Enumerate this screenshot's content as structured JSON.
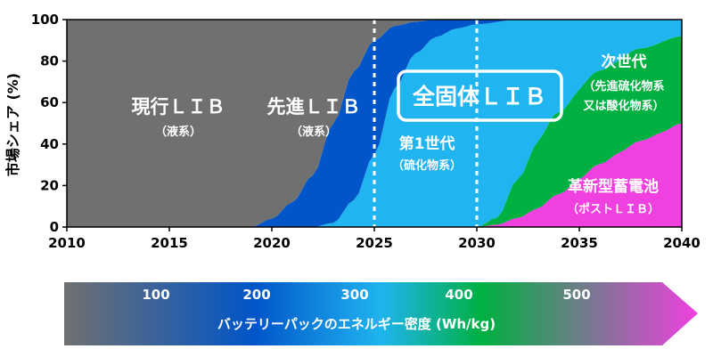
{
  "chart_data": {
    "type": "area",
    "ylabel": "市場シェア (%)",
    "xlim": [
      2010,
      2040
    ],
    "ylim": [
      0,
      100
    ],
    "xticks": [
      "2010",
      "2015",
      "2020",
      "2025",
      "2030",
      "2035",
      "2040"
    ],
    "yticks": [
      "0",
      "20",
      "40",
      "60",
      "80",
      "100"
    ],
    "series": [
      {
        "name": "現行ＬＩＢ",
        "sub": "（液系）",
        "color": "#707070",
        "x": [
          2010,
          2019,
          2020,
          2021,
          2022,
          2023,
          2024,
          2025,
          2026,
          2027,
          2028,
          2030,
          2040
        ],
        "values": [
          100,
          100,
          96,
          88,
          75,
          50,
          25,
          10,
          3,
          1,
          0,
          0,
          0
        ]
      },
      {
        "name": "先進ＬＩＢ",
        "sub": "（液系）",
        "color": "#0055c8",
        "x": [
          2010,
          2019,
          2020,
          2021,
          2022,
          2023,
          2024,
          2025,
          2026,
          2027,
          2028,
          2029,
          2030,
          2032,
          2040
        ],
        "values": [
          0,
          0,
          4,
          12,
          25,
          48,
          62,
          55,
          30,
          15,
          8,
          4,
          2,
          0,
          0
        ]
      },
      {
        "name": "第1世代",
        "sub": "（硫化物系）",
        "color": "#20b4f0",
        "x": [
          2010,
          2022,
          2023,
          2024,
          2025,
          2026,
          2027,
          2028,
          2029,
          2030,
          2031,
          2032,
          2034,
          2036,
          2038,
          2040
        ],
        "values": [
          0,
          0,
          2,
          13,
          35,
          67,
          82,
          87,
          88,
          87,
          82,
          70,
          45,
          25,
          14,
          8
        ]
      },
      {
        "name": "次世代",
        "sub1": "（先進硫化物系",
        "sub2": "又は酸化物系）",
        "color": "#00b040",
        "x": [
          2010,
          2029,
          2030,
          2031,
          2032,
          2033,
          2034,
          2035,
          2036,
          2037,
          2038,
          2039,
          2040
        ],
        "values": [
          0,
          0,
          0,
          3,
          17,
          32,
          40,
          45,
          46,
          46,
          45,
          44,
          42
        ]
      },
      {
        "name": "革新型蓄電池",
        "sub": "（ポストＬＩＢ）",
        "color": "#f040e0",
        "x": [
          2010,
          2030,
          2031,
          2032,
          2033,
          2034,
          2035,
          2036,
          2037,
          2038,
          2039,
          2040
        ],
        "values": [
          0,
          0,
          1,
          4,
          9,
          16,
          24,
          31,
          37,
          42,
          46,
          50
        ]
      }
    ],
    "highlight_label": "全固体ＬＩＢ",
    "marker_years": [
      2025,
      2030
    ]
  },
  "energy_density": {
    "title": "バッテリーパックのエネルギー密度 (Wh/kg)",
    "ticks": [
      "100",
      "200",
      "300",
      "400",
      "500"
    ],
    "colors": [
      "#707070",
      "#0055c8",
      "#20b4f0",
      "#00b040",
      "#f040e0"
    ]
  }
}
